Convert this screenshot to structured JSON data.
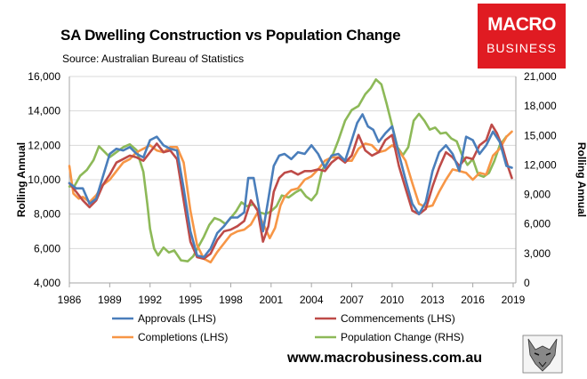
{
  "brand": {
    "line1": "MACRO",
    "line2": "BUSINESS"
  },
  "website": "www.macrobusiness.com.au",
  "colors": {
    "approvals": "#4a7ebb",
    "commencements": "#be4b48",
    "completions": "#f79646",
    "population": "#8db958",
    "brand": "#e01b22",
    "grid": "#d9d9d9"
  },
  "chart_data": {
    "type": "line",
    "title": "SA Dwelling Construction vs Population Change",
    "subtitle": "Source: Australian Bureau of Statistics",
    "xlabel": "",
    "ylabel": "Rolling Annual",
    "y2label": "Rolling Annual",
    "xlim": [
      1986,
      2019.2
    ],
    "ylim": [
      4000,
      16000
    ],
    "y2lim": [
      0,
      21000
    ],
    "x_ticks": [
      "1986",
      "1989",
      "1992",
      "1995",
      "1998",
      "2001",
      "2004",
      "2007",
      "2010",
      "2013",
      "2016",
      "2019"
    ],
    "y_ticks": [
      "4,000",
      "6,000",
      "8,000",
      "10,000",
      "12,000",
      "14,000",
      "16,000"
    ],
    "y2_ticks": [
      "0",
      "3,000",
      "6,000",
      "9,000",
      "12,000",
      "15,000",
      "18,000",
      "21,000"
    ],
    "legend_position": "bottom",
    "series": [
      {
        "name": "Approvals (LHS)",
        "axis": "left",
        "color": "#4a7ebb",
        "points": [
          [
            1986,
            9800
          ],
          [
            1986.5,
            9500
          ],
          [
            1987,
            9500
          ],
          [
            1987.5,
            8600
          ],
          [
            1988,
            8900
          ],
          [
            1988.5,
            10200
          ],
          [
            1989,
            11500
          ],
          [
            1989.5,
            11800
          ],
          [
            1990,
            11700
          ],
          [
            1990.5,
            11900
          ],
          [
            1991,
            11500
          ],
          [
            1991.5,
            11300
          ],
          [
            1992,
            12300
          ],
          [
            1992.5,
            12500
          ],
          [
            1993,
            12000
          ],
          [
            1993.5,
            11800
          ],
          [
            1994,
            11700
          ],
          [
            1994.5,
            9500
          ],
          [
            1995,
            7000
          ],
          [
            1995.5,
            5600
          ],
          [
            1996,
            5500
          ],
          [
            1996.5,
            6000
          ],
          [
            1997,
            6900
          ],
          [
            1997.5,
            7300
          ],
          [
            1998,
            7800
          ],
          [
            1998.5,
            7800
          ],
          [
            1999,
            8100
          ],
          [
            1999.3,
            10100
          ],
          [
            1999.7,
            10100
          ],
          [
            2000,
            8800
          ],
          [
            2000.4,
            7000
          ],
          [
            2000.8,
            8900
          ],
          [
            2001.2,
            10800
          ],
          [
            2001.6,
            11400
          ],
          [
            2002,
            11500
          ],
          [
            2002.5,
            11200
          ],
          [
            2003,
            11600
          ],
          [
            2003.5,
            11500
          ],
          [
            2004,
            12000
          ],
          [
            2004.5,
            11500
          ],
          [
            2005,
            10700
          ],
          [
            2005.5,
            11400
          ],
          [
            2006,
            11500
          ],
          [
            2006.5,
            11100
          ],
          [
            2007,
            12300
          ],
          [
            2007.4,
            13300
          ],
          [
            2007.8,
            13800
          ],
          [
            2008.2,
            13100
          ],
          [
            2008.6,
            12900
          ],
          [
            2009,
            12200
          ],
          [
            2009.5,
            12700
          ],
          [
            2010,
            13100
          ],
          [
            2010.5,
            11500
          ],
          [
            2011,
            10000
          ],
          [
            2011.5,
            8600
          ],
          [
            2012,
            8000
          ],
          [
            2012.5,
            8700
          ],
          [
            2013,
            10500
          ],
          [
            2013.5,
            11600
          ],
          [
            2014,
            12000
          ],
          [
            2014.5,
            11500
          ],
          [
            2015,
            10500
          ],
          [
            2015.5,
            12500
          ],
          [
            2016,
            12300
          ],
          [
            2016.5,
            11500
          ],
          [
            2017,
            12000
          ],
          [
            2017.5,
            12800
          ],
          [
            2018,
            12200
          ],
          [
            2018.5,
            10800
          ],
          [
            2018.9,
            10700
          ]
        ]
      },
      {
        "name": "Commencements (LHS)",
        "axis": "left",
        "color": "#be4b48",
        "points": [
          [
            1986,
            9800
          ],
          [
            1986.5,
            9300
          ],
          [
            1987,
            8800
          ],
          [
            1987.5,
            8400
          ],
          [
            1988,
            8800
          ],
          [
            1988.5,
            9700
          ],
          [
            1989,
            10300
          ],
          [
            1989.5,
            11000
          ],
          [
            1990,
            11200
          ],
          [
            1990.5,
            11400
          ],
          [
            1991,
            11300
          ],
          [
            1991.5,
            11100
          ],
          [
            1992,
            11600
          ],
          [
            1992.5,
            12100
          ],
          [
            1993,
            11600
          ],
          [
            1993.5,
            11700
          ],
          [
            1994,
            11200
          ],
          [
            1994.5,
            8800
          ],
          [
            1995,
            6400
          ],
          [
            1995.5,
            5500
          ],
          [
            1996,
            5400
          ],
          [
            1996.5,
            5700
          ],
          [
            1997,
            6500
          ],
          [
            1997.5,
            7000
          ],
          [
            1998,
            7100
          ],
          [
            1998.5,
            7300
          ],
          [
            1999,
            7600
          ],
          [
            1999.5,
            8800
          ],
          [
            2000,
            8200
          ],
          [
            2000.4,
            6400
          ],
          [
            2000.8,
            7300
          ],
          [
            2001.2,
            9300
          ],
          [
            2001.6,
            10100
          ],
          [
            2002,
            10400
          ],
          [
            2002.5,
            10500
          ],
          [
            2003,
            10300
          ],
          [
            2003.5,
            10500
          ],
          [
            2004,
            10500
          ],
          [
            2004.5,
            10600
          ],
          [
            2005,
            10500
          ],
          [
            2005.5,
            11000
          ],
          [
            2006,
            11300
          ],
          [
            2006.5,
            11000
          ],
          [
            2007,
            11400
          ],
          [
            2007.5,
            12600
          ],
          [
            2008,
            11700
          ],
          [
            2008.5,
            11400
          ],
          [
            2009,
            11600
          ],
          [
            2009.5,
            12300
          ],
          [
            2010,
            12600
          ],
          [
            2010.5,
            10800
          ],
          [
            2011,
            9500
          ],
          [
            2011.5,
            8200
          ],
          [
            2012,
            8000
          ],
          [
            2012.5,
            8300
          ],
          [
            2013,
            9600
          ],
          [
            2013.5,
            10700
          ],
          [
            2014,
            11600
          ],
          [
            2014.5,
            11300
          ],
          [
            2015,
            10800
          ],
          [
            2015.5,
            11300
          ],
          [
            2016,
            11200
          ],
          [
            2016.5,
            12000
          ],
          [
            2017,
            12300
          ],
          [
            2017.4,
            13200
          ],
          [
            2017.8,
            12700
          ],
          [
            2018.2,
            11900
          ],
          [
            2018.6,
            10800
          ],
          [
            2018.9,
            10100
          ]
        ]
      },
      {
        "name": "Completions (LHS)",
        "axis": "left",
        "color": "#f79646",
        "points": [
          [
            1986,
            10800
          ],
          [
            1986.3,
            9200
          ],
          [
            1986.7,
            8900
          ],
          [
            1987,
            9000
          ],
          [
            1987.5,
            8700
          ],
          [
            1988,
            9100
          ],
          [
            1988.5,
            9700
          ],
          [
            1989,
            10000
          ],
          [
            1989.5,
            10500
          ],
          [
            1990,
            11000
          ],
          [
            1990.5,
            11200
          ],
          [
            1991,
            11600
          ],
          [
            1991.5,
            11800
          ],
          [
            1992,
            12000
          ],
          [
            1992.5,
            11700
          ],
          [
            1993,
            11600
          ],
          [
            1993.5,
            11900
          ],
          [
            1994,
            11900
          ],
          [
            1994.5,
            11000
          ],
          [
            1995,
            8200
          ],
          [
            1995.5,
            6200
          ],
          [
            1996,
            5400
          ],
          [
            1996.5,
            5200
          ],
          [
            1997,
            5800
          ],
          [
            1997.5,
            6300
          ],
          [
            1998,
            6800
          ],
          [
            1998.5,
            7000
          ],
          [
            1999,
            7100
          ],
          [
            1999.5,
            7400
          ],
          [
            2000,
            8100
          ],
          [
            2000.5,
            7300
          ],
          [
            2000.9,
            6600
          ],
          [
            2001.3,
            7200
          ],
          [
            2001.7,
            8500
          ],
          [
            2002,
            9000
          ],
          [
            2002.5,
            9400
          ],
          [
            2003,
            9500
          ],
          [
            2003.5,
            10000
          ],
          [
            2004,
            10200
          ],
          [
            2004.5,
            10600
          ],
          [
            2005,
            11100
          ],
          [
            2005.5,
            11300
          ],
          [
            2006,
            11300
          ],
          [
            2006.5,
            11100
          ],
          [
            2007,
            11100
          ],
          [
            2007.5,
            11800
          ],
          [
            2008,
            12100
          ],
          [
            2008.5,
            12000
          ],
          [
            2009,
            11600
          ],
          [
            2009.5,
            11700
          ],
          [
            2010,
            12000
          ],
          [
            2010.5,
            11700
          ],
          [
            2011,
            11100
          ],
          [
            2011.5,
            9800
          ],
          [
            2012,
            8600
          ],
          [
            2012.5,
            8400
          ],
          [
            2013,
            8500
          ],
          [
            2013.5,
            9300
          ],
          [
            2014,
            10000
          ],
          [
            2014.5,
            10600
          ],
          [
            2015,
            10500
          ],
          [
            2015.5,
            10400
          ],
          [
            2016,
            10000
          ],
          [
            2016.5,
            10400
          ],
          [
            2017,
            10300
          ],
          [
            2017.5,
            11400
          ],
          [
            2018,
            11800
          ],
          [
            2018.5,
            12500
          ],
          [
            2018.9,
            12800
          ]
        ]
      },
      {
        "name": "Population Change (RHS)",
        "axis": "right",
        "color": "#8db958",
        "points": [
          [
            1986,
            9800
          ],
          [
            1986.4,
            9900
          ],
          [
            1986.8,
            10900
          ],
          [
            1987.3,
            11500
          ],
          [
            1987.8,
            12500
          ],
          [
            1988.2,
            13900
          ],
          [
            1988.5,
            13500
          ],
          [
            1989,
            12800
          ],
          [
            1989.5,
            13300
          ],
          [
            1990,
            13800
          ],
          [
            1990.5,
            14100
          ],
          [
            1991,
            13500
          ],
          [
            1991.5,
            11300
          ],
          [
            1991.8,
            8000
          ],
          [
            1992,
            5500
          ],
          [
            1992.3,
            3500
          ],
          [
            1992.6,
            2800
          ],
          [
            1993,
            3600
          ],
          [
            1993.4,
            3100
          ],
          [
            1993.8,
            3300
          ],
          [
            1994.3,
            2300
          ],
          [
            1994.8,
            2200
          ],
          [
            1995.2,
            2700
          ],
          [
            1995.6,
            3700
          ],
          [
            1996,
            4700
          ],
          [
            1996.4,
            5900
          ],
          [
            1996.8,
            6600
          ],
          [
            1997.2,
            6400
          ],
          [
            1997.6,
            6000
          ],
          [
            1998,
            6600
          ],
          [
            1998.4,
            7300
          ],
          [
            1998.8,
            8200
          ],
          [
            1999.2,
            7800
          ],
          [
            1999.7,
            8000
          ],
          [
            2000.1,
            7200
          ],
          [
            2000.6,
            7000
          ],
          [
            2001,
            7300
          ],
          [
            2001.4,
            7800
          ],
          [
            2001.8,
            8900
          ],
          [
            2002.3,
            8700
          ],
          [
            2002.8,
            9200
          ],
          [
            2003.2,
            9500
          ],
          [
            2003.6,
            8800
          ],
          [
            2004,
            8400
          ],
          [
            2004.4,
            9100
          ],
          [
            2004.8,
            11500
          ],
          [
            2005.2,
            12300
          ],
          [
            2005.6,
            13100
          ],
          [
            2006,
            14500
          ],
          [
            2006.5,
            16500
          ],
          [
            2007,
            17600
          ],
          [
            2007.5,
            18000
          ],
          [
            2008,
            19200
          ],
          [
            2008.4,
            19800
          ],
          [
            2008.8,
            20700
          ],
          [
            2009.2,
            20200
          ],
          [
            2009.6,
            18200
          ],
          [
            2010,
            16000
          ],
          [
            2010.4,
            13800
          ],
          [
            2010.8,
            13000
          ],
          [
            2011.2,
            13800
          ],
          [
            2011.6,
            16500
          ],
          [
            2012,
            17200
          ],
          [
            2012.4,
            16500
          ],
          [
            2012.8,
            15600
          ],
          [
            2013.2,
            15800
          ],
          [
            2013.6,
            15200
          ],
          [
            2014,
            15300
          ],
          [
            2014.4,
            14700
          ],
          [
            2014.8,
            14400
          ],
          [
            2015.2,
            13000
          ],
          [
            2015.6,
            12000
          ],
          [
            2016,
            12600
          ],
          [
            2016.4,
            11000
          ],
          [
            2016.8,
            10800
          ],
          [
            2017.2,
            11200
          ],
          [
            2017.6,
            12400
          ],
          [
            2018,
            14000
          ],
          [
            2018.5,
            14900
          ]
        ]
      }
    ]
  }
}
